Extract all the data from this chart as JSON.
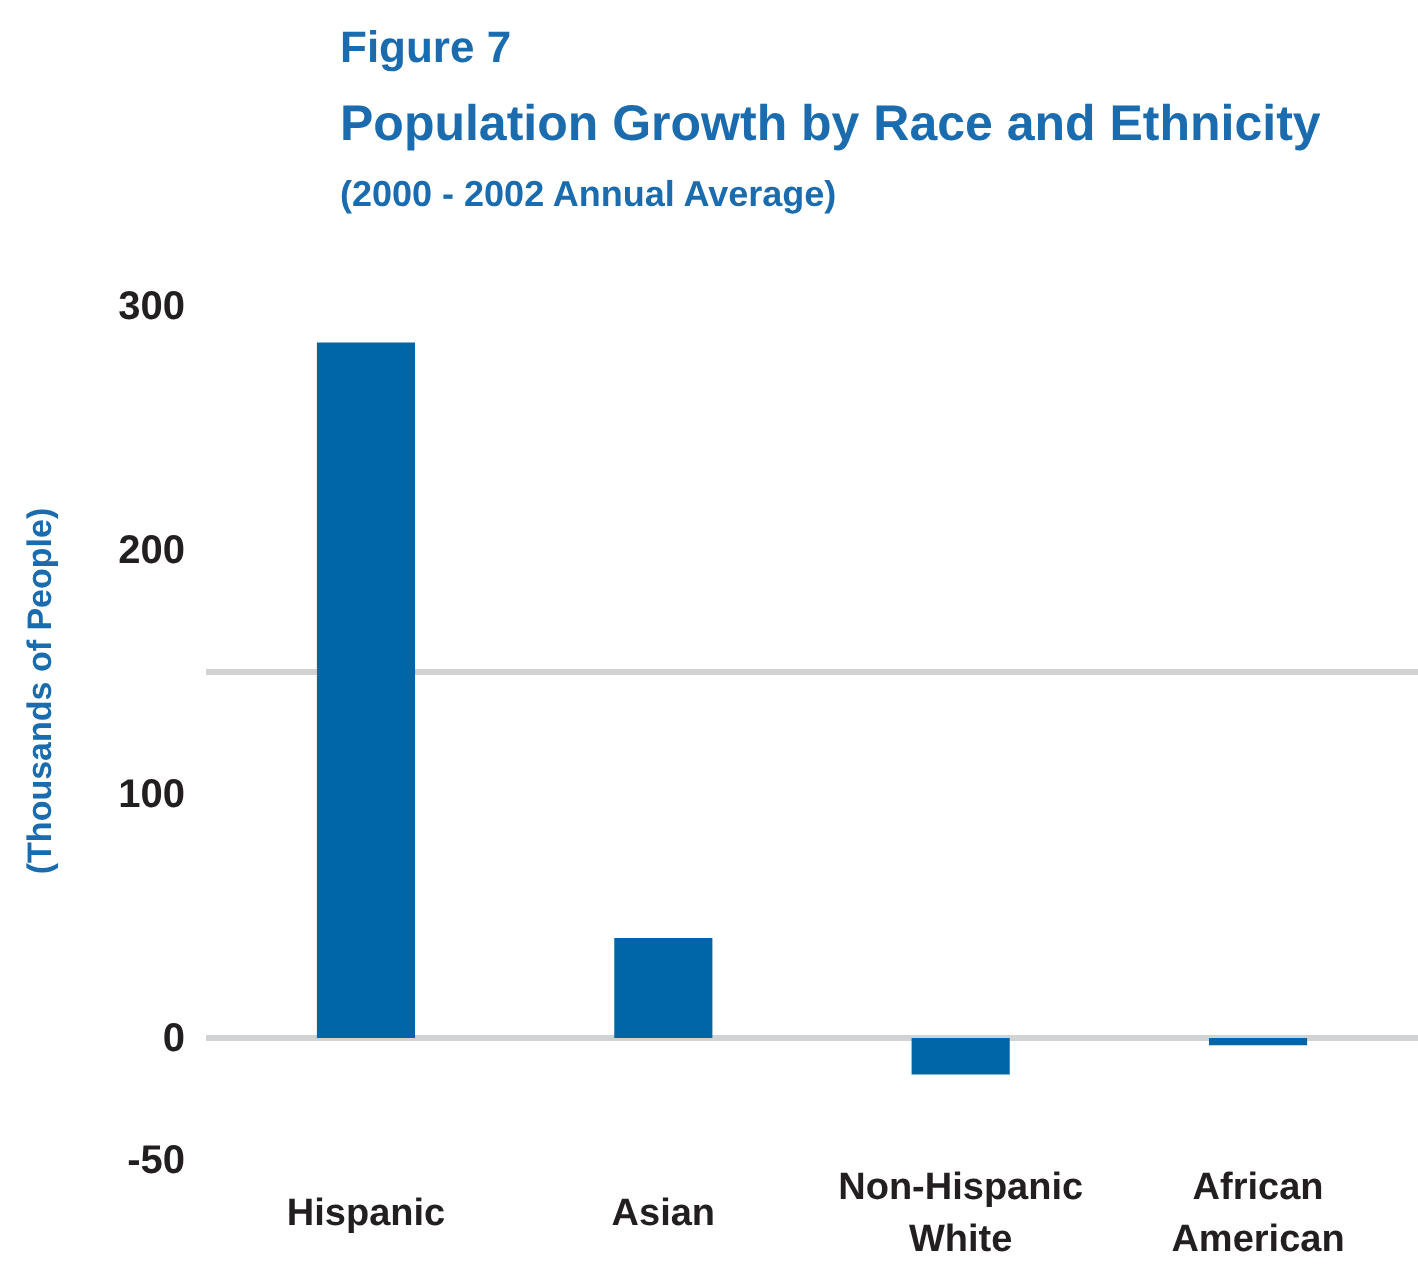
{
  "chart_data": {
    "type": "bar",
    "title": "Population Growth by Race and Ethnicity",
    "subtitle": "(2000 - 2002 Annual Average)",
    "annotations": [
      "Figure 7"
    ],
    "ylabel": "(Thousands of People)",
    "categories": [
      "Hispanic",
      "Asian",
      "Non-Hispanic White",
      "African American"
    ],
    "values": [
      285,
      41,
      -15,
      -3
    ],
    "color": "#0066a8",
    "ylim": [
      -50,
      300
    ],
    "yticks": [
      -50,
      0,
      100,
      200,
      300
    ],
    "ref_lines": [
      {
        "axis": "y",
        "value": 0,
        "color": "#d1d2d4"
      },
      {
        "axis": "y",
        "value": 150,
        "color": "#d1d2d4"
      }
    ]
  }
}
